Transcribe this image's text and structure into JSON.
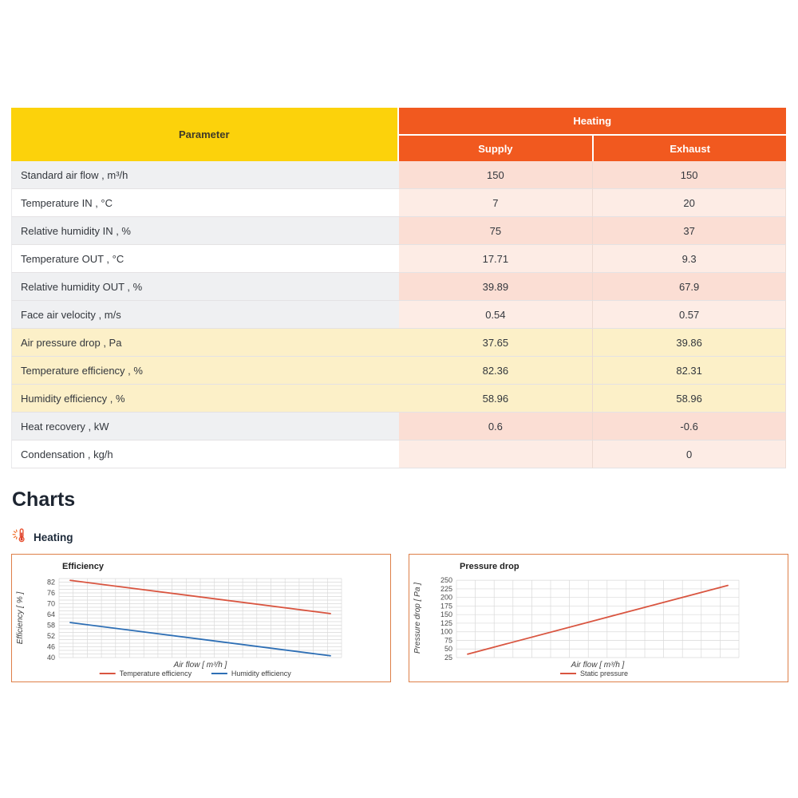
{
  "table": {
    "header": {
      "parameter": "Parameter",
      "group": "Heating",
      "col_supply": "Supply",
      "col_exhaust": "Exhaust"
    },
    "rows": [
      {
        "label": "Standard air flow , m³/h",
        "supply": "150",
        "exhaust": "150"
      },
      {
        "label": "Temperature IN , °C",
        "supply": "7",
        "exhaust": "20"
      },
      {
        "label": "Relative humidity IN , %",
        "supply": "75",
        "exhaust": "37"
      },
      {
        "label": "Temperature OUT , °C",
        "supply": "17.71",
        "exhaust": "9.3"
      },
      {
        "label": "Relative humidity OUT , %",
        "supply": "39.89",
        "exhaust": "67.9"
      },
      {
        "label": "Face air velocity , m/s",
        "supply": "0.54",
        "exhaust": "0.57"
      },
      {
        "label": "Air pressure drop , Pa",
        "supply": "37.65",
        "exhaust": "39.86"
      },
      {
        "label": "Temperature efficiency , %",
        "supply": "82.36",
        "exhaust": "82.31"
      },
      {
        "label": "Humidity efficiency , %",
        "supply": "58.96",
        "exhaust": "58.96"
      },
      {
        "label": "Heat recovery , kW",
        "supply": "0.6",
        "exhaust": "-0.6"
      },
      {
        "label": "Condensation , kg/h",
        "supply": "",
        "exhaust": "0"
      }
    ]
  },
  "charts_section": {
    "title": "Charts",
    "subsection": "Heating"
  },
  "colors": {
    "header_yellow": "#fcd20b",
    "header_orange": "#f1591f",
    "row_yellow": "#fcf0c8",
    "pink_dark": "#fbded4",
    "pink_light": "#fdece5",
    "panel_border": "#de7f48",
    "line_red": "#d95540",
    "line_blue": "#2e6fb5"
  },
  "chart_data": [
    {
      "type": "line",
      "title": "Efficiency",
      "xlabel": "Air flow [ m³/h ]",
      "ylabel": "Efficiency [ % ]",
      "ylim": [
        40,
        84
      ],
      "yticks": [
        40,
        46,
        52,
        58,
        64,
        70,
        76,
        82
      ],
      "y_minor_step": 2,
      "x_divisions": 20,
      "x_tick_labels": "none",
      "grid": true,
      "legend_position": "bottom",
      "series": [
        {
          "name": "Temperature efficiency",
          "color": "#d95540",
          "values": [
            83,
            64.5
          ]
        },
        {
          "name": "Humidity efficiency",
          "color": "#2e6fb5",
          "values": [
            59.5,
            41
          ]
        }
      ]
    },
    {
      "type": "line",
      "title": "Pressure drop",
      "xlabel": "Air flow [ m³/h ]",
      "ylabel": "Pressure drop [ Pa ]",
      "ylim": [
        25,
        255
      ],
      "yticks": [
        25,
        50,
        75,
        100,
        125,
        150,
        175,
        200,
        225,
        250
      ],
      "x_divisions": 15,
      "x_tick_labels": "none",
      "grid": true,
      "legend_position": "bottom",
      "series": [
        {
          "name": "Static pressure",
          "color": "#d95540",
          "values": [
            35,
            235
          ]
        }
      ]
    }
  ]
}
